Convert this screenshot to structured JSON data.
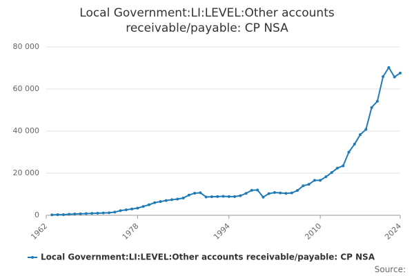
{
  "chart_data": {
    "type": "line",
    "title": "Local Government:LI:LEVEL:Other accounts receivable/payable: CP NSA",
    "x": [
      1963,
      1964,
      1965,
      1966,
      1967,
      1968,
      1969,
      1970,
      1971,
      1972,
      1973,
      1974,
      1975,
      1976,
      1977,
      1978,
      1979,
      1980,
      1981,
      1982,
      1983,
      1984,
      1985,
      1986,
      1987,
      1988,
      1989,
      1990,
      1991,
      1992,
      1993,
      1994,
      1995,
      1996,
      1997,
      1998,
      1999,
      2000,
      2001,
      2002,
      2003,
      2004,
      2005,
      2006,
      2007,
      2008,
      2009,
      2010,
      2011,
      2012,
      2013,
      2014,
      2015,
      2016,
      2017,
      2018,
      2019,
      2020,
      2021,
      2022,
      2023,
      2024
    ],
    "series": [
      {
        "name": "Local Government:LI:LEVEL:Other accounts receivable/payable: CP NSA",
        "color": "#1f7ab5",
        "values": [
          200,
          300,
          300,
          500,
          600,
          700,
          800,
          900,
          1000,
          1100,
          1200,
          1500,
          2200,
          2600,
          3000,
          3400,
          4200,
          5000,
          6000,
          6500,
          7000,
          7400,
          7700,
          8200,
          9600,
          10500,
          10700,
          8700,
          8800,
          8900,
          9000,
          8900,
          8900,
          9300,
          10400,
          11900,
          12000,
          8600,
          10300,
          10800,
          10600,
          10400,
          10600,
          11800,
          14000,
          14700,
          16600,
          16600,
          18300,
          20300,
          22400,
          23500,
          30000,
          33800,
          38300,
          40800,
          51200,
          54200,
          65900,
          70200,
          65700,
          67600
        ]
      }
    ],
    "xlim": [
      1962,
      2024
    ],
    "xticks": [
      1962,
      1978,
      1994,
      2010,
      2024
    ],
    "ylim": [
      0,
      80000
    ],
    "yticks": [
      0,
      {
        "value": 20000,
        "label": "20 000"
      },
      {
        "value": 40000,
        "label": "40 000"
      },
      {
        "value": 60000,
        "label": "60 000"
      },
      {
        "value": 80000,
        "label": "80 000"
      }
    ],
    "grid": true,
    "source": "Source:"
  }
}
